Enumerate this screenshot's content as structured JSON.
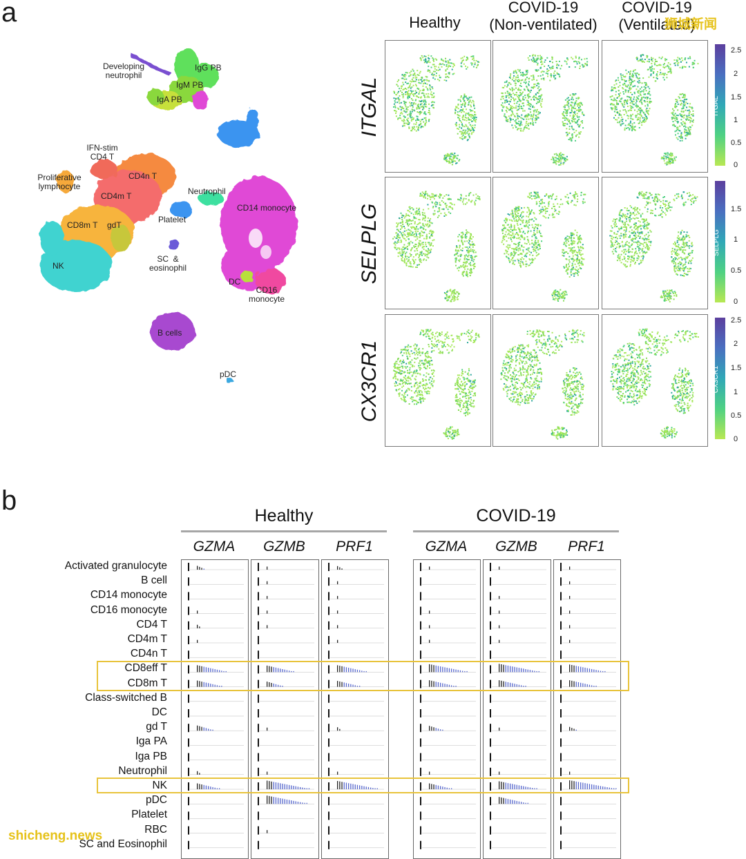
{
  "panel_labels": {
    "a": "a",
    "b": "b"
  },
  "watermarks": {
    "top_right": "狮城新闻",
    "bottom_left": "shicheng.news"
  },
  "umap": {
    "clusters": [
      {
        "name": "Developing neutrophil",
        "color": "#7a4fd0"
      },
      {
        "name": "IgG PB",
        "color": "#5fe05c"
      },
      {
        "name": "IgM PB",
        "color": "#8ad83c"
      },
      {
        "name": "IgA PB",
        "color": "#c7e03a"
      },
      {
        "name": "IFN-stim CD4 T",
        "color": "#f06a5a"
      },
      {
        "name": "CD4n T",
        "color": "#f58a40"
      },
      {
        "name": "CD4m T",
        "color": "#f46c6c"
      },
      {
        "name": "Proliferative lymphocyte",
        "color": "#f6a93a"
      },
      {
        "name": "CD8m T",
        "color": "#f7b43c"
      },
      {
        "name": "gdT",
        "color": "#c7c73a"
      },
      {
        "name": "NK",
        "color": "#3fd3d0"
      },
      {
        "name": "Neutrophil",
        "color": "#3ce0a0"
      },
      {
        "name": "Platelet",
        "color": "#3a94f0"
      },
      {
        "name": "SC & eosinophil",
        "color": "#6a5ad8"
      },
      {
        "name": "CD14 monocyte",
        "color": "#e04ad6"
      },
      {
        "name": "DC",
        "color": "#b8e03a"
      },
      {
        "name": "CD16 monocyte",
        "color": "#f04aa0"
      },
      {
        "name": "B cells",
        "color": "#a84ad0"
      },
      {
        "name": "pDC",
        "color": "#3aa8e0"
      }
    ],
    "labels": {
      "dev_neut": "Developing\nneutrophil",
      "igg": "IgG PB",
      "igm": "IgM PB",
      "iga": "IgA PB",
      "ifn": "IFN-stim\nCD4 T",
      "cd4n": "CD4n T",
      "cd4m": "CD4m T",
      "prolif": "Proliferative\nlymphocyte",
      "cd8m": "CD8m T",
      "gdt": "gdT",
      "nk": "NK",
      "neutrophil": "Neutrophil",
      "platelet": "Platelet",
      "sc": "SC  &\neosinophil",
      "cd14": "CD14 monocyte",
      "dc": "DC",
      "cd16": "CD16\nmonocyte",
      "bcells": "B cells",
      "pdc": "pDC"
    }
  },
  "feature_grid": {
    "columns": [
      "Healthy",
      "COVID-19\n(Non-ventilated)",
      "COVID-19\n(Ventilated)"
    ],
    "genes": [
      {
        "name": "ITGAL",
        "colorbar_label": "ITGAL",
        "ticks": [
          "2.5",
          "2",
          "1.5",
          "1",
          "0.5",
          "0"
        ]
      },
      {
        "name": "SELPLG",
        "colorbar_label": "SELPLG",
        "ticks": [
          "1.5",
          "1",
          "0.5",
          "0"
        ]
      },
      {
        "name": "CX3CR1",
        "colorbar_label": "CX3CR1",
        "ticks": [
          "2.5",
          "2",
          "1.5",
          "1",
          "0.5",
          "0"
        ]
      }
    ]
  },
  "violin": {
    "groups": [
      {
        "name": "Healthy",
        "genes": [
          "GZMA",
          "GZMB",
          "PRF1"
        ]
      },
      {
        "name": "COVID-19",
        "genes": [
          "GZMA",
          "GZMB",
          "PRF1"
        ]
      }
    ],
    "cell_types": [
      "Activated granulocyte",
      "B cell",
      "CD14 monocyte",
      "CD16 monocyte",
      "CD4 T",
      "CD4m T",
      "CD4n T",
      "CD8eff T",
      "CD8m T",
      "Class-switched B",
      "DC",
      "gd T",
      "Iga PA",
      "Iga PB",
      "Neutrophil",
      "NK",
      "pDC",
      "Platelet",
      "RBC",
      "SC and Eosinophil"
    ],
    "highlighted_rows": [
      "CD8eff T",
      "CD8m T",
      "NK"
    ],
    "expression_levels": [
      [
        0.15,
        0.05,
        0.12,
        0.05,
        0.05,
        0.05
      ],
      [
        0.02,
        0.05,
        0.05,
        0.02,
        0.02,
        0.03
      ],
      [
        0.02,
        0.03,
        0.03,
        0.02,
        0.03,
        0.04
      ],
      [
        0.03,
        0.03,
        0.04,
        0.03,
        0.03,
        0.03
      ],
      [
        0.1,
        0.05,
        0.05,
        0.04,
        0.03,
        0.05
      ],
      [
        0.03,
        0.02,
        0.03,
        0.04,
        0.03,
        0.03
      ],
      [
        0.02,
        0.02,
        0.02,
        0.02,
        0.02,
        0.02
      ],
      [
        0.6,
        0.55,
        0.6,
        0.75,
        0.8,
        0.7
      ],
      [
        0.5,
        0.35,
        0.45,
        0.55,
        0.55,
        0.55
      ],
      [
        0.02,
        0.02,
        0.02,
        0.02,
        0.02,
        0.02
      ],
      [
        0.02,
        0.02,
        0.02,
        0.02,
        0.02,
        0.02
      ],
      [
        0.35,
        0.05,
        0.1,
        0.3,
        0.05,
        0.15
      ],
      [
        0.02,
        0.02,
        0.02,
        0.02,
        0.02,
        0.02
      ],
      [
        0.02,
        0.02,
        0.02,
        0.02,
        0.02,
        0.02
      ],
      [
        0.1,
        0.03,
        0.03,
        0.03,
        0.03,
        0.03
      ],
      [
        0.45,
        0.85,
        0.8,
        0.45,
        0.75,
        0.9
      ],
      [
        0.02,
        0.8,
        0.02,
        0.02,
        0.6,
        0.02
      ],
      [
        0.02,
        0.02,
        0.02,
        0.02,
        0.02,
        0.02
      ],
      [
        0.02,
        0.05,
        0.02,
        0.02,
        0.02,
        0.02
      ],
      [
        0.02,
        0.02,
        0.02,
        0.02,
        0.02,
        0.02
      ]
    ]
  }
}
